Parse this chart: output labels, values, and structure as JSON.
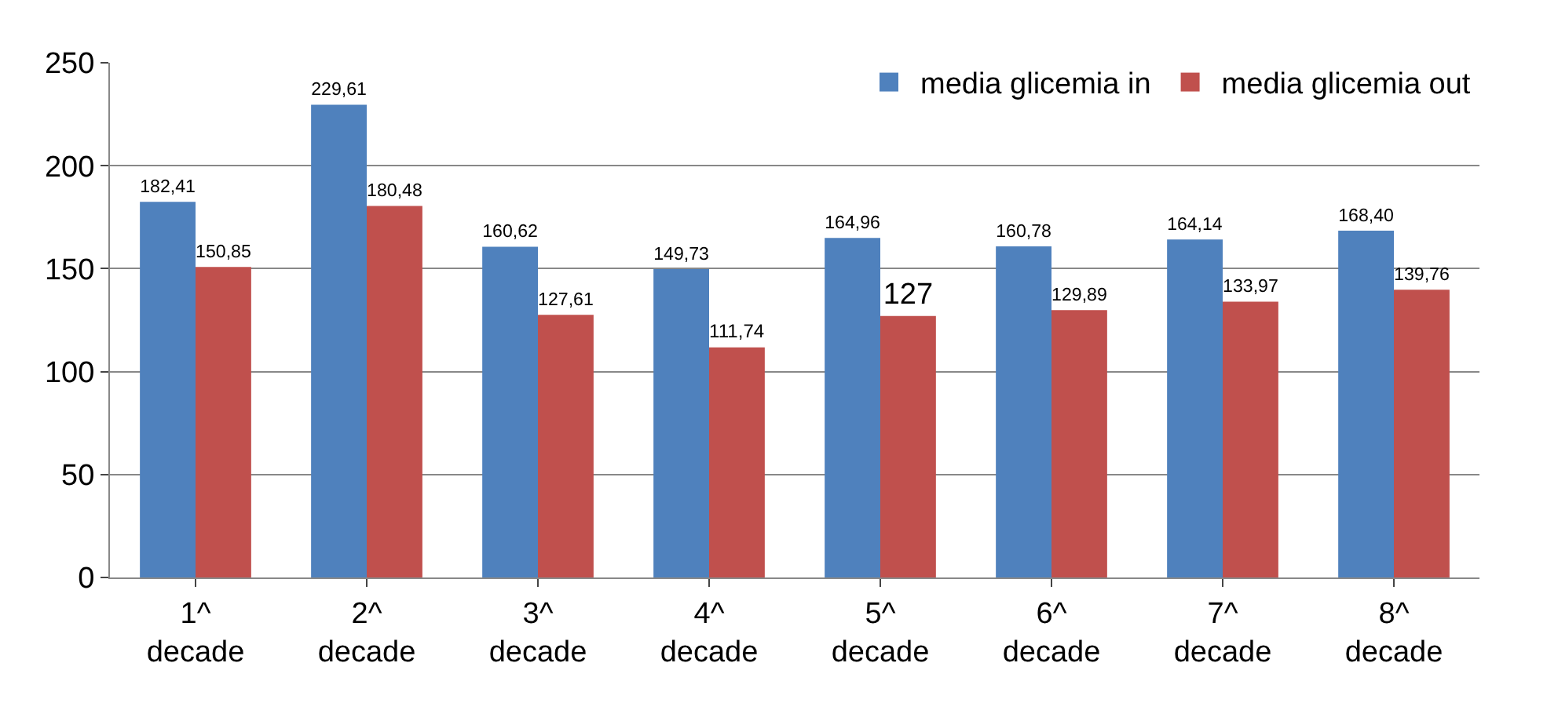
{
  "chart_data": {
    "type": "bar",
    "categories": [
      "1^ decade",
      "2^ decade",
      "3^ decade",
      "4^ decade",
      "5^ decade",
      "6^ decade",
      "7^ decade",
      "8^ decade"
    ],
    "series": [
      {
        "name": "media glicemia in",
        "color": "#4f81bd",
        "values": [
          182.41,
          229.61,
          160.62,
          149.73,
          164.96,
          160.78,
          164.14,
          168.4
        ],
        "value_labels": [
          "182,41",
          "229,61",
          "160,62",
          "149,73",
          "164,96",
          "160,78",
          "164,14",
          "168,40"
        ]
      },
      {
        "name": "media glicemia out",
        "color": "#c0504d",
        "values": [
          150.85,
          180.48,
          127.61,
          111.74,
          127,
          129.89,
          133.97,
          139.76
        ],
        "value_labels": [
          "150,85",
          "180,48",
          "127,61",
          "111,74",
          "127",
          "129,89",
          "133,97",
          "139,76"
        ]
      }
    ],
    "ylim": [
      0,
      250
    ],
    "yticks": [
      0,
      50,
      100,
      150,
      200,
      250
    ],
    "grid": "y",
    "legend": "top right"
  }
}
